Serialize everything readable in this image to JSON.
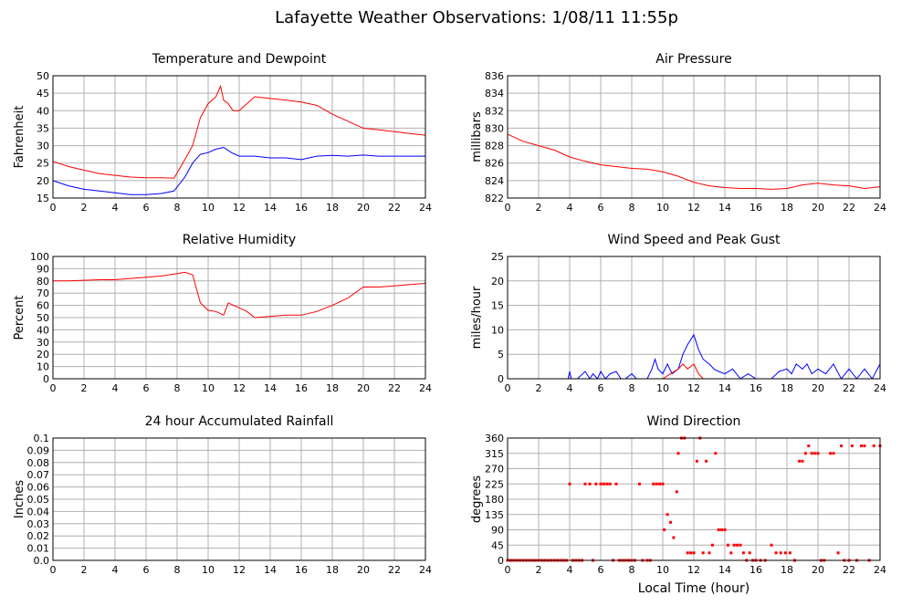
{
  "title": "Lafayette Weather Observations: 1/08/11 11:55p",
  "x_axis_label": "Local Time (hour)",
  "colors": {
    "red": "#ff0000",
    "blue": "#0000ff",
    "grid": "#b0b0b0",
    "axis": "#000000"
  },
  "chart_data": [
    {
      "type": "line",
      "title": "Temperature and Dewpoint",
      "ylabel": "Fahrenheit",
      "xlim": [
        0,
        24
      ],
      "ylim": [
        15,
        50
      ],
      "x_ticks": [
        0,
        2,
        4,
        6,
        8,
        10,
        12,
        14,
        16,
        18,
        20,
        22,
        24
      ],
      "y_ticks": [
        15,
        20,
        25,
        30,
        35,
        40,
        45,
        50
      ],
      "grid": true,
      "series": [
        {
          "color": "#ff0000",
          "x": [
            0,
            1,
            2,
            3,
            4,
            5,
            6,
            7,
            7.8,
            8.5,
            9,
            9.5,
            10,
            10.5,
            10.8,
            11,
            11.3,
            11.6,
            12,
            12.5,
            13,
            14,
            15,
            16,
            17,
            18,
            19,
            20,
            21,
            22,
            23,
            24
          ],
          "y": [
            25.5,
            24,
            23,
            22,
            21.5,
            21,
            20.8,
            20.8,
            20.7,
            26,
            30,
            38,
            42,
            44,
            47,
            43,
            42,
            40,
            40,
            42,
            44,
            43.5,
            43,
            42.5,
            41.5,
            39,
            37,
            35,
            34.5,
            34,
            33.5,
            33
          ]
        },
        {
          "color": "#0000ff",
          "x": [
            0,
            1,
            2,
            3,
            4,
            5,
            6,
            7,
            7.8,
            8.5,
            9,
            9.5,
            10,
            10.5,
            11,
            11.5,
            12,
            13,
            14,
            15,
            16,
            17,
            18,
            19,
            20,
            21,
            22,
            23,
            24
          ],
          "y": [
            20,
            18.5,
            17.5,
            17,
            16.5,
            16,
            16,
            16.3,
            17,
            21,
            25,
            27.5,
            28,
            29,
            29.5,
            28,
            27,
            27,
            26.5,
            26.5,
            26,
            27,
            27.2,
            27,
            27.3,
            27,
            27,
            27,
            27
          ]
        }
      ]
    },
    {
      "type": "line",
      "title": "Air Pressure",
      "ylabel": "millibars",
      "xlim": [
        0,
        24
      ],
      "ylim": [
        822,
        836
      ],
      "x_ticks": [
        0,
        2,
        4,
        6,
        8,
        10,
        12,
        14,
        16,
        18,
        20,
        22,
        24
      ],
      "y_ticks": [
        822,
        824,
        826,
        828,
        830,
        832,
        834,
        836
      ],
      "grid": true,
      "series": [
        {
          "color": "#ff0000",
          "x": [
            0,
            1,
            2,
            3,
            4,
            5,
            6,
            7,
            8,
            9,
            10,
            11,
            12,
            13,
            14,
            15,
            16,
            17,
            18,
            19,
            20,
            21,
            22,
            23,
            24
          ],
          "y": [
            829.3,
            828.5,
            828,
            827.5,
            826.7,
            826.2,
            825.8,
            825.6,
            825.4,
            825.3,
            825,
            824.5,
            823.8,
            823.4,
            823.2,
            823.1,
            823.1,
            823,
            823.1,
            823.5,
            823.7,
            823.5,
            823.4,
            823.1,
            823.3
          ]
        }
      ]
    },
    {
      "type": "line",
      "title": "Relative Humidity",
      "ylabel": "Percent",
      "xlim": [
        0,
        24
      ],
      "ylim": [
        0,
        100
      ],
      "x_ticks": [
        0,
        2,
        4,
        6,
        8,
        10,
        12,
        14,
        16,
        18,
        20,
        22,
        24
      ],
      "y_ticks": [
        0,
        10,
        20,
        30,
        40,
        50,
        60,
        70,
        80,
        90,
        100
      ],
      "grid": true,
      "series": [
        {
          "color": "#ff0000",
          "x": [
            0,
            1,
            2,
            3,
            4,
            5,
            6,
            7,
            8,
            8.5,
            9,
            9.5,
            10,
            10.5,
            11,
            11.3,
            12,
            12.5,
            13,
            14,
            15,
            16,
            17,
            18,
            19,
            20,
            21,
            22,
            23,
            24
          ],
          "y": [
            80,
            80,
            80.5,
            81,
            81,
            82,
            83,
            84,
            86,
            87,
            85,
            62,
            56,
            55,
            52,
            62,
            58,
            55,
            50,
            51,
            52,
            52,
            55,
            60,
            66,
            75,
            75,
            76,
            77,
            78
          ]
        }
      ]
    },
    {
      "type": "line",
      "title": "Wind Speed and Peak Gust",
      "ylabel": "miles/hour",
      "xlim": [
        0,
        24
      ],
      "ylim": [
        0,
        25
      ],
      "x_ticks": [
        0,
        2,
        4,
        6,
        8,
        10,
        12,
        14,
        16,
        18,
        20,
        22,
        24
      ],
      "y_ticks": [
        0,
        5,
        10,
        15,
        20,
        25
      ],
      "grid": true,
      "series": [
        {
          "color": "#0000ff",
          "x": [
            0,
            3.9,
            4,
            4.1,
            4.5,
            5,
            5.3,
            5.5,
            5.8,
            6,
            6.3,
            6.6,
            7,
            7.3,
            7.6,
            8,
            8.3,
            8.6,
            9,
            9.3,
            9.5,
            9.7,
            10,
            10.3,
            10.6,
            11,
            11.3,
            11.6,
            12,
            12.3,
            12.6,
            13,
            13.3,
            13.6,
            14,
            14.5,
            15,
            15.5,
            16,
            16.5,
            17,
            17.5,
            18,
            18.3,
            18.6,
            19,
            19.3,
            19.6,
            20,
            20.5,
            21,
            21.5,
            22,
            22.5,
            23,
            23.5,
            24
          ],
          "y": [
            0,
            0,
            1.5,
            0,
            0,
            1.5,
            0,
            1,
            0,
            1.5,
            0,
            1,
            1.5,
            0,
            0,
            1,
            0,
            0,
            0,
            2,
            4,
            2,
            1,
            3,
            1,
            2,
            5,
            7,
            9,
            6,
            4,
            3,
            2,
            1.5,
            1,
            2,
            0,
            1,
            0,
            0,
            0,
            1.5,
            2,
            1,
            3,
            2,
            3,
            1,
            2,
            1,
            3,
            0,
            2,
            0,
            2,
            0,
            3
          ]
        },
        {
          "color": "#ff0000",
          "x": [
            0,
            10,
            10.5,
            11,
            11.3,
            11.6,
            12,
            12.3,
            12.6,
            13,
            24
          ],
          "y": [
            0,
            0,
            1,
            2,
            3,
            2,
            3,
            1,
            0,
            0,
            0
          ]
        }
      ]
    },
    {
      "type": "line",
      "title": "24 hour Accumulated Rainfall",
      "ylabel": "Inches",
      "xlim": [
        0,
        24
      ],
      "ylim": [
        0,
        0.1
      ],
      "x_ticks": [
        0,
        2,
        4,
        6,
        8,
        10,
        12,
        14,
        16,
        18,
        20,
        22,
        24
      ],
      "y_ticks": [
        "0.0",
        "0.01",
        "0.02",
        "0.03",
        "0.04",
        "0.05",
        "0.06",
        "0.07",
        "0.08",
        "0.09",
        "0.1"
      ],
      "grid": true,
      "series": [
        {
          "color": "#ff0000",
          "x": [
            0,
            24
          ],
          "y": [
            0,
            0
          ]
        }
      ]
    },
    {
      "type": "scatter",
      "title": "Wind Direction",
      "ylabel": "degrees",
      "xlabel": "Local Time (hour)",
      "xlim": [
        0,
        24
      ],
      "ylim": [
        0,
        360
      ],
      "x_ticks": [
        0,
        2,
        4,
        6,
        8,
        10,
        12,
        14,
        16,
        18,
        20,
        22,
        24
      ],
      "y_ticks": [
        0,
        45,
        90,
        135,
        180,
        225,
        270,
        315,
        360
      ],
      "grid": true,
      "series": [
        {
          "color": "#ff0000",
          "points": [
            [
              0,
              0
            ],
            [
              0.2,
              0
            ],
            [
              0.4,
              0
            ],
            [
              0.6,
              0
            ],
            [
              0.8,
              0
            ],
            [
              1,
              0
            ],
            [
              1.2,
              0
            ],
            [
              1.4,
              0
            ],
            [
              1.6,
              0
            ],
            [
              1.8,
              0
            ],
            [
              2,
              0
            ],
            [
              2.2,
              0
            ],
            [
              2.4,
              0
            ],
            [
              2.6,
              0
            ],
            [
              2.8,
              0
            ],
            [
              3,
              0
            ],
            [
              3.2,
              0
            ],
            [
              3.4,
              0
            ],
            [
              3.6,
              0
            ],
            [
              3.8,
              0
            ],
            [
              4,
              225
            ],
            [
              4.2,
              0
            ],
            [
              4.4,
              0
            ],
            [
              4.6,
              0
            ],
            [
              4.8,
              0
            ],
            [
              5,
              225
            ],
            [
              5.3,
              225
            ],
            [
              5.5,
              0
            ],
            [
              5.7,
              225
            ],
            [
              6,
              225
            ],
            [
              6.2,
              225
            ],
            [
              6.4,
              225
            ],
            [
              6.6,
              225
            ],
            [
              6.8,
              0
            ],
            [
              7,
              225
            ],
            [
              7.2,
              0
            ],
            [
              7.4,
              0
            ],
            [
              7.6,
              0
            ],
            [
              7.8,
              0
            ],
            [
              8,
              0
            ],
            [
              8.2,
              0
            ],
            [
              8.5,
              225
            ],
            [
              8.7,
              0
            ],
            [
              9,
              0
            ],
            [
              9.2,
              0
            ],
            [
              9.4,
              225
            ],
            [
              9.6,
              225
            ],
            [
              9.8,
              225
            ],
            [
              10,
              225
            ],
            [
              10.1,
              90
            ],
            [
              10.3,
              135
            ],
            [
              10.5,
              112
            ],
            [
              10.7,
              67
            ],
            [
              10.9,
              202
            ],
            [
              11,
              315
            ],
            [
              11.2,
              360
            ],
            [
              11.4,
              360
            ],
            [
              11.6,
              22
            ],
            [
              11.8,
              22
            ],
            [
              12,
              22
            ],
            [
              12.2,
              292
            ],
            [
              12.4,
              360
            ],
            [
              12.6,
              22
            ],
            [
              12.8,
              292
            ],
            [
              13,
              22
            ],
            [
              13.2,
              45
            ],
            [
              13.4,
              315
            ],
            [
              13.6,
              90
            ],
            [
              13.8,
              90
            ],
            [
              14,
              90
            ],
            [
              14.2,
              45
            ],
            [
              14.4,
              22
            ],
            [
              14.6,
              45
            ],
            [
              14.8,
              45
            ],
            [
              15,
              45
            ],
            [
              15.2,
              22
            ],
            [
              15.4,
              0
            ],
            [
              15.6,
              22
            ],
            [
              15.8,
              0
            ],
            [
              16,
              0
            ],
            [
              16.3,
              0
            ],
            [
              16.6,
              0
            ],
            [
              17,
              45
            ],
            [
              17.3,
              22
            ],
            [
              17.6,
              22
            ],
            [
              17.9,
              22
            ],
            [
              18.2,
              22
            ],
            [
              18.5,
              0
            ],
            [
              18.8,
              292
            ],
            [
              19,
              292
            ],
            [
              19.2,
              315
            ],
            [
              19.4,
              337
            ],
            [
              19.6,
              315
            ],
            [
              19.8,
              315
            ],
            [
              20,
              315
            ],
            [
              20.2,
              0
            ],
            [
              20.4,
              0
            ],
            [
              20.8,
              315
            ],
            [
              21,
              315
            ],
            [
              21.3,
              22
            ],
            [
              21.5,
              337
            ],
            [
              21.7,
              0
            ],
            [
              22,
              0
            ],
            [
              22.2,
              337
            ],
            [
              22.5,
              0
            ],
            [
              22.8,
              337
            ],
            [
              23,
              337
            ],
            [
              23.3,
              0
            ],
            [
              23.6,
              337
            ],
            [
              24,
              337
            ]
          ]
        }
      ]
    }
  ]
}
